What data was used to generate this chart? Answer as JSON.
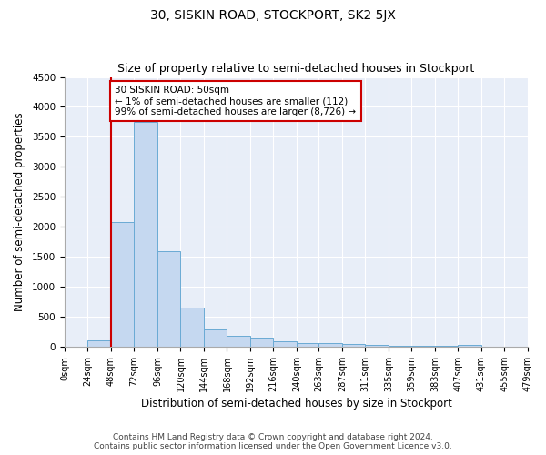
{
  "title": "30, SISKIN ROAD, STOCKPORT, SK2 5JX",
  "subtitle": "Size of property relative to semi-detached houses in Stockport",
  "xlabel": "Distribution of semi-detached houses by size in Stockport",
  "ylabel": "Number of semi-detached properties",
  "footer_line1": "Contains HM Land Registry data © Crown copyright and database right 2024.",
  "footer_line2": "Contains public sector information licensed under the Open Government Licence v3.0.",
  "annotation_line1": "30 SISKIN ROAD: 50sqm",
  "annotation_line2": "← 1% of semi-detached houses are smaller (112)",
  "annotation_line3": "99% of semi-detached houses are larger (8,726) →",
  "property_size": 50,
  "bar_edges": [
    0,
    24,
    48,
    72,
    96,
    120,
    144,
    168,
    192,
    216,
    240,
    263,
    287,
    311,
    335,
    359,
    383,
    407,
    431,
    455,
    479
  ],
  "bar_heights": [
    0,
    112,
    2075,
    3750,
    1600,
    650,
    290,
    175,
    150,
    90,
    65,
    55,
    40,
    25,
    20,
    15,
    10,
    35,
    5,
    2,
    1
  ],
  "bar_color": "#c5d8f0",
  "bar_edge_color": "#6aaad4",
  "vline_color": "#cc0000",
  "vline_x": 48,
  "ylim": [
    0,
    4500
  ],
  "yticks": [
    0,
    500,
    1000,
    1500,
    2000,
    2500,
    3000,
    3500,
    4000,
    4500
  ],
  "annotation_box_color": "#cc0000",
  "bg_color": "#e8eef8",
  "grid_color": "#ffffff",
  "fig_bg": "#ffffff",
  "title_fontsize": 10,
  "subtitle_fontsize": 9,
  "tick_label_fontsize": 7,
  "axis_label_fontsize": 8.5,
  "footer_fontsize": 6.5,
  "annotation_fontsize": 7.5
}
